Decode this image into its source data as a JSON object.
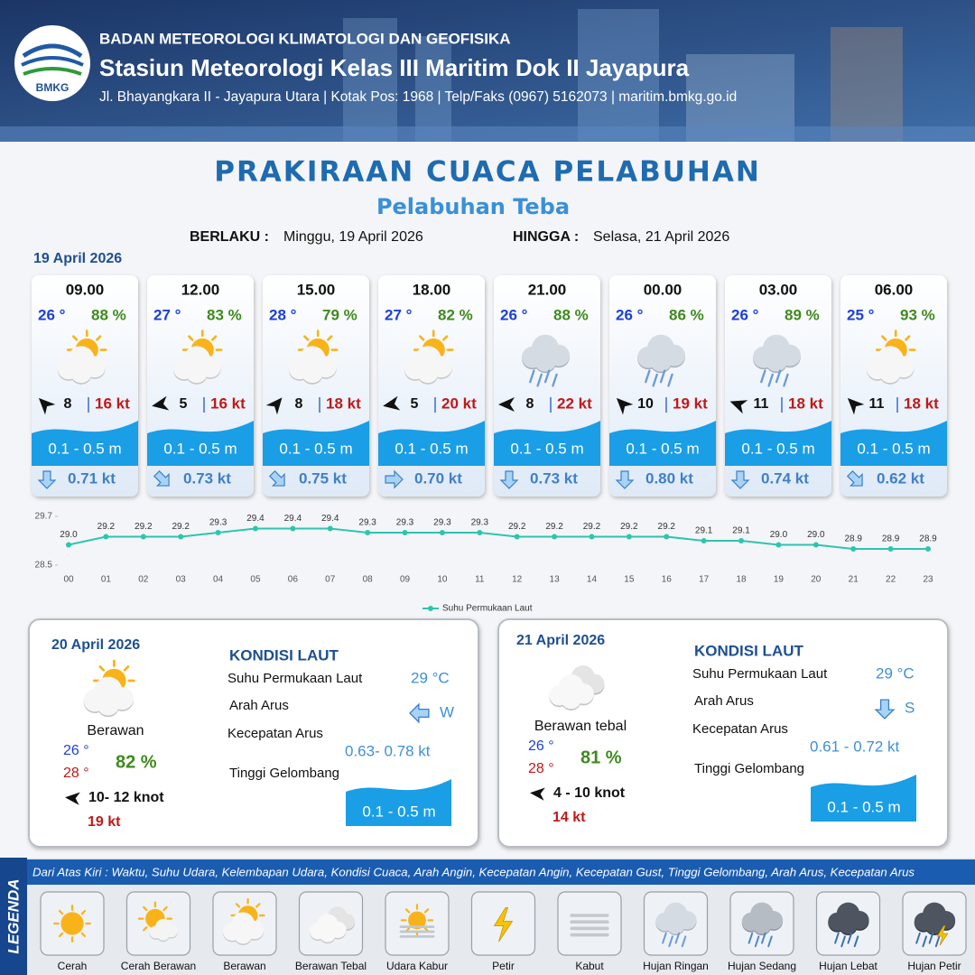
{
  "header": {
    "logo": "BMKG",
    "agency": "BADAN METEOROLOGI KLIMATOLOGI DAN GEOFISIKA",
    "station": "Stasiun Meteorologi Kelas III Maritim Dok II Jayapura",
    "address": "Jl. Bhayangkara II - Jayapura Utara | Kotak Pos: 1968 | Telp/Faks (0967) 5162073 | maritim.bmkg.go.id"
  },
  "title": "PRAKIRAAN CUACA PELABUHAN",
  "subtitle": "Pelabuhan Teba",
  "validity": {
    "from_label": "BERLAKU :",
    "from": "Minggu, 19 April 2026",
    "to_label": "HINGGA :",
    "to": "Selasa, 21 April 2026"
  },
  "day1": "19 April 2026",
  "forecasts": [
    {
      "time": "09.00",
      "temp": "26 °",
      "humidity": "88 %",
      "icon": 2,
      "wind_rot": -135,
      "wind": "8",
      "gust": "16 kt",
      "wave": "0.1 - 0.5 m",
      "current_rot": 90,
      "current": "0.71 kt"
    },
    {
      "time": "12.00",
      "temp": "27 °",
      "humidity": "83 %",
      "icon": 2,
      "wind_rot": 170,
      "wind": "5",
      "gust": "16 kt",
      "wave": "0.1 - 0.5 m",
      "current_rot": 45,
      "current": "0.73 kt"
    },
    {
      "time": "15.00",
      "temp": "28 °",
      "humidity": "79 %",
      "icon": 2,
      "wind_rot": -50,
      "wind": "8",
      "gust": "18 kt",
      "wave": "0.1 - 0.5 m",
      "current_rot": 45,
      "current": "0.75 kt"
    },
    {
      "time": "18.00",
      "temp": "27 °",
      "humidity": "82 %",
      "icon": 2,
      "wind_rot": 170,
      "wind": "5",
      "gust": "20 kt",
      "wave": "0.1 - 0.5 m",
      "current_rot": 0,
      "current": "0.70 kt"
    },
    {
      "time": "21.00",
      "temp": "26 °",
      "humidity": "88 %",
      "icon": 7,
      "wind_rot": 180,
      "wind": "8",
      "gust": "22 kt",
      "wave": "0.1 - 0.5 m",
      "current_rot": 90,
      "current": "0.73 kt"
    },
    {
      "time": "00.00",
      "temp": "26 °",
      "humidity": "86 %",
      "icon": 7,
      "wind_rot": -135,
      "wind": "10",
      "gust": "19 kt",
      "wave": "0.1 - 0.5 m",
      "current_rot": 90,
      "current": "0.80 kt"
    },
    {
      "time": "03.00",
      "temp": "26 °",
      "humidity": "89 %",
      "icon": 7,
      "wind_rot": -160,
      "wind": "11",
      "gust": "18 kt",
      "wave": "0.1 - 0.5 m",
      "current_rot": 90,
      "current": "0.74 kt"
    },
    {
      "time": "06.00",
      "temp": "25 °",
      "humidity": "93 %",
      "icon": 2,
      "wind_rot": -135,
      "wind": "11",
      "gust": "18 kt",
      "wave": "0.1 - 0.5 m",
      "current_rot": 45,
      "current": "0.62 kt"
    }
  ],
  "chart_data": {
    "type": "line",
    "categories": [
      "00",
      "01",
      "02",
      "03",
      "04",
      "05",
      "06",
      "07",
      "08",
      "09",
      "10",
      "11",
      "12",
      "13",
      "14",
      "15",
      "16",
      "17",
      "18",
      "19",
      "20",
      "21",
      "22",
      "23"
    ],
    "series": [
      {
        "name": "Suhu Permukaan Laut",
        "color": "#2ec4b0",
        "values": [
          29.0,
          29.2,
          29.2,
          29.2,
          29.3,
          29.4,
          29.4,
          29.4,
          29.3,
          29.3,
          29.3,
          29.3,
          29.2,
          29.2,
          29.2,
          29.2,
          29.2,
          29.1,
          29.1,
          29.0,
          29.0,
          28.9,
          28.9,
          28.9
        ],
        "value_labels": [
          "29.0",
          "29.2",
          "29.2",
          "29.2",
          "29.3",
          "29.4",
          "29.4",
          "29.4",
          "29.3",
          "29.3",
          "29.3",
          "29.3",
          "29.2",
          "29.2",
          "29.2",
          "29.2",
          "29.2",
          "29.1",
          "29.1",
          "29.0",
          "29.0",
          "28.9",
          "28.9",
          "28.9"
        ]
      }
    ],
    "ylim": [
      28.5,
      29.7
    ],
    "yticks": [
      28.5,
      29.7
    ],
    "legend": "bottom"
  },
  "days": [
    {
      "date": "20 April 2026",
      "icon": 2,
      "weather": "Berawan",
      "temp_min": "26 °",
      "temp_max": "28 °",
      "humidity": "82 %",
      "wind_rot": 185,
      "wind": "10- 12 knot",
      "gust": "19 kt",
      "sea_title": "KONDISI LAUT",
      "sst_label": "Suhu Permukaan Laut",
      "sst": "29 °C",
      "current_dir_label": "Arah Arus",
      "current_rot": 180,
      "current_dir": "W",
      "current_speed_label": "Kecepatan Arus",
      "current_speed": "0.63- 0.78 kt",
      "wave_label": "Tinggi Gelombang",
      "wave": "0.1 - 0.5 m"
    },
    {
      "date": "21 April 2026",
      "icon": 3,
      "weather": "Berawan tebal",
      "temp_min": "26 °",
      "temp_max": "28 °",
      "humidity": "81 %",
      "wind_rot": 185,
      "wind": "4 - 10 knot",
      "gust": "14 kt",
      "sea_title": "KONDISI LAUT",
      "sst_label": "Suhu Permukaan Laut",
      "sst": "29 °C",
      "current_dir_label": "Arah Arus",
      "current_rot": 90,
      "current_dir": "S",
      "current_speed_label": "Kecepatan Arus",
      "current_speed": "0.61 - 0.72 kt",
      "wave_label": "Tinggi Gelombang",
      "wave": "0.1 - 0.5 m"
    }
  ],
  "legend": {
    "title": "LEGENDA",
    "description": "Dari Atas Kiri : Waktu, Suhu Udara, Kelembapan Udara, Kondisi Cuaca, Arah Angin, Kecepatan Angin, Kecepatan Gust, Tinggi Gelombang, Arah Arus, Kecepatan Arus",
    "items": [
      "Cerah",
      "Cerah Berawan",
      "Berawan",
      "Berawan Tebal",
      "Udara Kabur",
      "Petir",
      "Kabut",
      "Hujan Ringan",
      "Hujan Sedang",
      "Hujan Lebat",
      "Hujan Petir"
    ]
  }
}
